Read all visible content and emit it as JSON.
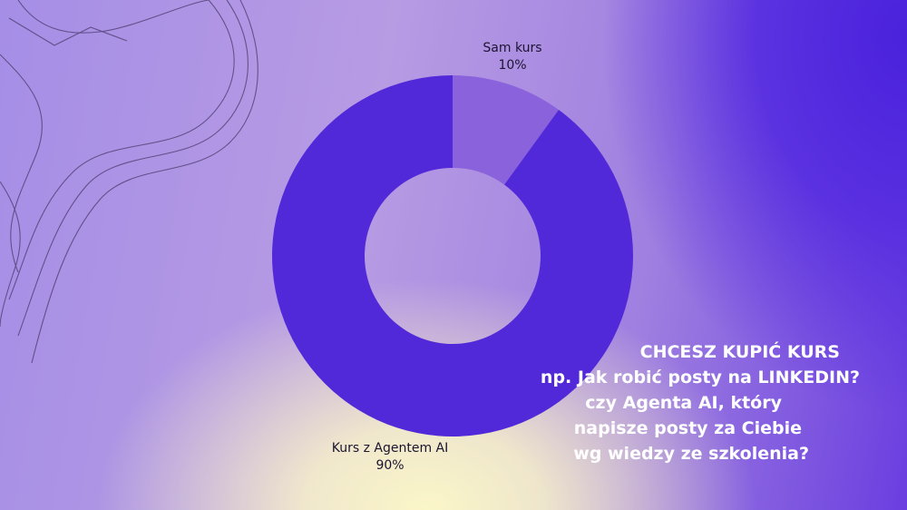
{
  "chart_data": {
    "type": "pie",
    "donut": true,
    "slices": [
      {
        "label": "Sam kurs",
        "value": 10,
        "percent_label": "10%",
        "color": "#8a63dc"
      },
      {
        "label": "Kurs z Agentem AI",
        "value": 90,
        "percent_label": "90%",
        "color": "#5229d8"
      }
    ]
  },
  "headline": {
    "line1": "CHCESZ KUPIĆ KURS",
    "line2": "np. Jak robić posty na LINKEDIN?",
    "line3": "czy Agenta AI, który",
    "line4": "napisze posty za Ciebie",
    "line5": "wg wiedzy ze szkolenia?"
  },
  "colors": {
    "text_dark": "#1b1530",
    "headline": "#ffffff"
  }
}
